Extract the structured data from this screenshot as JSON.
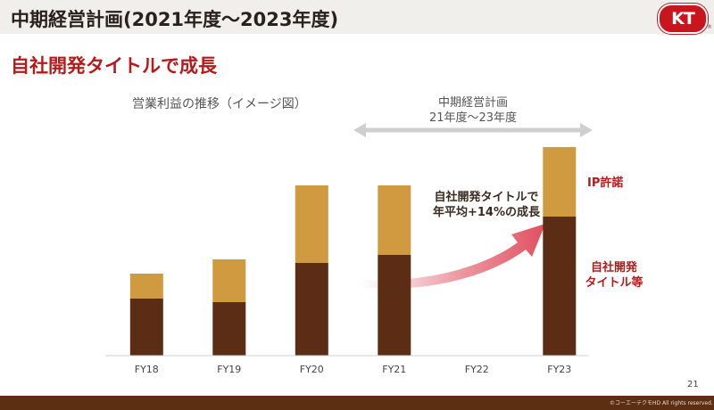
{
  "header": {
    "title": "中期経営計画(2021年度～2023年度)",
    "logo_text": "KT",
    "logo_mark": "®"
  },
  "subtitle": "自社開発タイトルで成長",
  "plan_label": {
    "line1": "中期経営計画",
    "line2": "21年度～23年度"
  },
  "annotation": {
    "growth_line1": "自社開発タイトルで",
    "growth_line2": "年平均+14%の成長",
    "ip_label": "IP許諾",
    "own_line1": "自社開発",
    "own_line2": "タイトル等"
  },
  "colors": {
    "own_dev": "#5a2d14",
    "ip": "#cf9a40",
    "accent_red": "#b41b1b",
    "arrow_red": "#e05060"
  },
  "page_number": "21",
  "copyright": "©コーエーテクモHD All rights reserved.",
  "chart_data": {
    "type": "bar",
    "stacked": true,
    "title": "営業利益の推移（イメージ図）",
    "categories": [
      "FY18",
      "FY19",
      "FY20",
      "FY21",
      "FY22",
      "FY23"
    ],
    "series": [
      {
        "name": "自社開発タイトル等",
        "values": [
          64,
          60,
          104,
          113,
          null,
          156
        ]
      },
      {
        "name": "IP許諾",
        "values": [
          28,
          48,
          87,
          78,
          null,
          78
        ]
      }
    ],
    "ylim": [
      0,
      240
    ],
    "grid": false,
    "legend": "direct-labels-right"
  }
}
